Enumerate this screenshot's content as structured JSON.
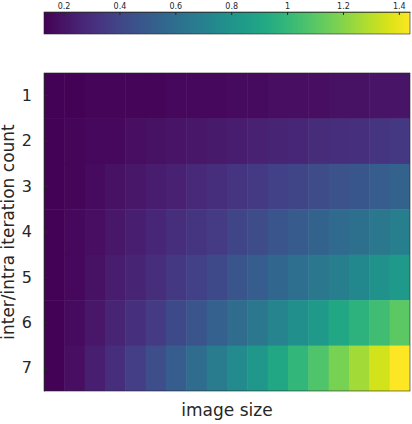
{
  "chart_data": {
    "type": "heatmap",
    "xlabel": "image size",
    "ylabel": "inter/intra iteration count",
    "rows": [
      "1",
      "2",
      "3",
      "4",
      "5",
      "6",
      "7"
    ],
    "tick_labels": "y",
    "color": "viridis",
    "cells": [
      [
        0.14,
        0.14,
        0.15,
        0.15,
        0.15,
        0.15,
        0.16,
        0.16,
        0.16,
        0.17,
        0.17,
        0.18,
        0.18,
        0.18,
        0.19,
        0.19,
        0.2,
        0.2
      ],
      [
        0.14,
        0.15,
        0.16,
        0.16,
        0.18,
        0.19,
        0.2,
        0.21,
        0.22,
        0.23,
        0.25,
        0.26,
        0.27,
        0.29,
        0.3,
        0.31,
        0.33,
        0.34
      ],
      [
        0.14,
        0.15,
        0.17,
        0.19,
        0.21,
        0.23,
        0.25,
        0.28,
        0.3,
        0.33,
        0.35,
        0.38,
        0.4,
        0.43,
        0.46,
        0.48,
        0.51,
        0.54
      ],
      [
        0.14,
        0.16,
        0.18,
        0.21,
        0.24,
        0.27,
        0.3,
        0.33,
        0.36,
        0.4,
        0.43,
        0.47,
        0.5,
        0.54,
        0.58,
        0.61,
        0.65,
        0.69
      ],
      [
        0.14,
        0.16,
        0.19,
        0.23,
        0.26,
        0.3,
        0.34,
        0.38,
        0.42,
        0.47,
        0.51,
        0.56,
        0.6,
        0.65,
        0.69,
        0.74,
        0.79,
        0.84
      ],
      [
        0.14,
        0.17,
        0.21,
        0.26,
        0.31,
        0.36,
        0.42,
        0.47,
        0.53,
        0.59,
        0.65,
        0.72,
        0.78,
        0.84,
        0.91,
        0.97,
        1.04,
        1.11
      ],
      [
        0.14,
        0.18,
        0.24,
        0.3,
        0.37,
        0.44,
        0.51,
        0.59,
        0.67,
        0.75,
        0.83,
        0.91,
        0.99,
        1.08,
        1.17,
        1.26,
        1.35,
        1.44
      ]
    ],
    "colorbar": {
      "range": [
        0.13,
        1.44
      ],
      "ticks": [
        0.2,
        0.4,
        0.6,
        0.8,
        1,
        1.2,
        1.4
      ]
    }
  }
}
